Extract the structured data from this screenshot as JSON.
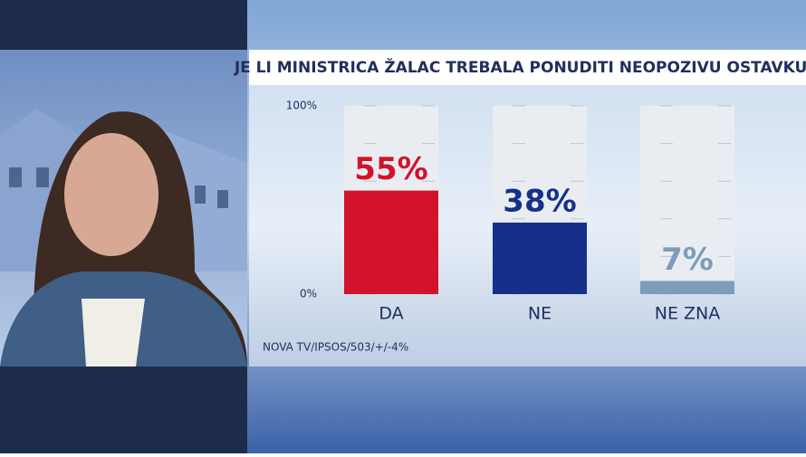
{
  "chart_data": {
    "type": "bar",
    "title": "JE LI MINISTRICA ŽALAC TREBALA PONUDITI NEOPOZIVU OSTAVKU?",
    "categories": [
      "DA",
      "NE",
      "NE ZNA"
    ],
    "values": [
      55,
      38,
      7
    ],
    "value_labels": [
      "55%",
      "38%",
      "7%"
    ],
    "colors": [
      "#d3122c",
      "#16308a",
      "#7c9cba"
    ],
    "ylim": [
      0,
      100
    ],
    "yticks": [
      {
        "value": 0,
        "label": "0%"
      },
      {
        "value": 100,
        "label": "100%"
      }
    ],
    "minor_yticks": [
      20,
      40,
      60,
      80
    ],
    "grid": true,
    "source": "NOVA TV/IPSOS/503/+/-4%"
  }
}
